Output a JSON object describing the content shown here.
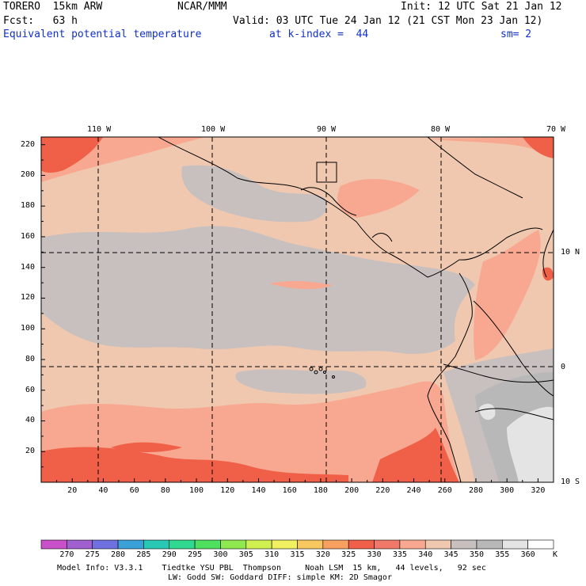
{
  "header": {
    "model": "TORERO  15km ARW",
    "org": "NCAR/MMM",
    "init": "Init: 12 UTC Sat 21 Jan 12",
    "fcst": "Fcst:   63 h",
    "valid": "Valid: 03 UTC Tue 24 Jan 12 (21 CST Mon 23 Jan 12)",
    "field": "Equivalent potential temperature",
    "level": "at k-index =  44",
    "smooth": "sm= 2"
  },
  "axes": {
    "lon_labels": [
      "110 W",
      "100 W",
      "90 W",
      "80 W",
      "70 W"
    ],
    "lat_labels": [
      "10 N",
      "0",
      "10 S"
    ],
    "x_ticks": [
      "20",
      "40",
      "60",
      "80",
      "100",
      "120",
      "140",
      "160",
      "180",
      "200",
      "220",
      "240",
      "260",
      "280",
      "300",
      "320"
    ],
    "y_ticks": [
      "220",
      "200",
      "180",
      "160",
      "140",
      "120",
      "100",
      "80",
      "60",
      "40",
      "20"
    ]
  },
  "colorbar": {
    "values": [
      "270",
      "275",
      "280",
      "285",
      "290",
      "295",
      "300",
      "305",
      "310",
      "315",
      "320",
      "325",
      "330",
      "335",
      "340",
      "345",
      "350",
      "355",
      "360"
    ],
    "unit": "K",
    "colors": [
      "#c850c8",
      "#a060d0",
      "#7070e0",
      "#3aa0d8",
      "#28c8b4",
      "#30d890",
      "#50e060",
      "#90e850",
      "#d0f050",
      "#f0f060",
      "#f8c860",
      "#f8a060",
      "#f06048",
      "#f07868",
      "#f8a890",
      "#f0c8b0",
      "#c8c0be",
      "#b8b8b8",
      "#e4e4e4",
      "#ffffff"
    ]
  },
  "model_info": {
    "line1": "Model Info: V3.3.1    Tiedtke YSU PBL  Thompson     Noah LSM  15 km,   44 levels,   92 sec",
    "line2": "LW: Godd SW: Goddard DIFF: simple KM: 2D Smagor"
  }
}
